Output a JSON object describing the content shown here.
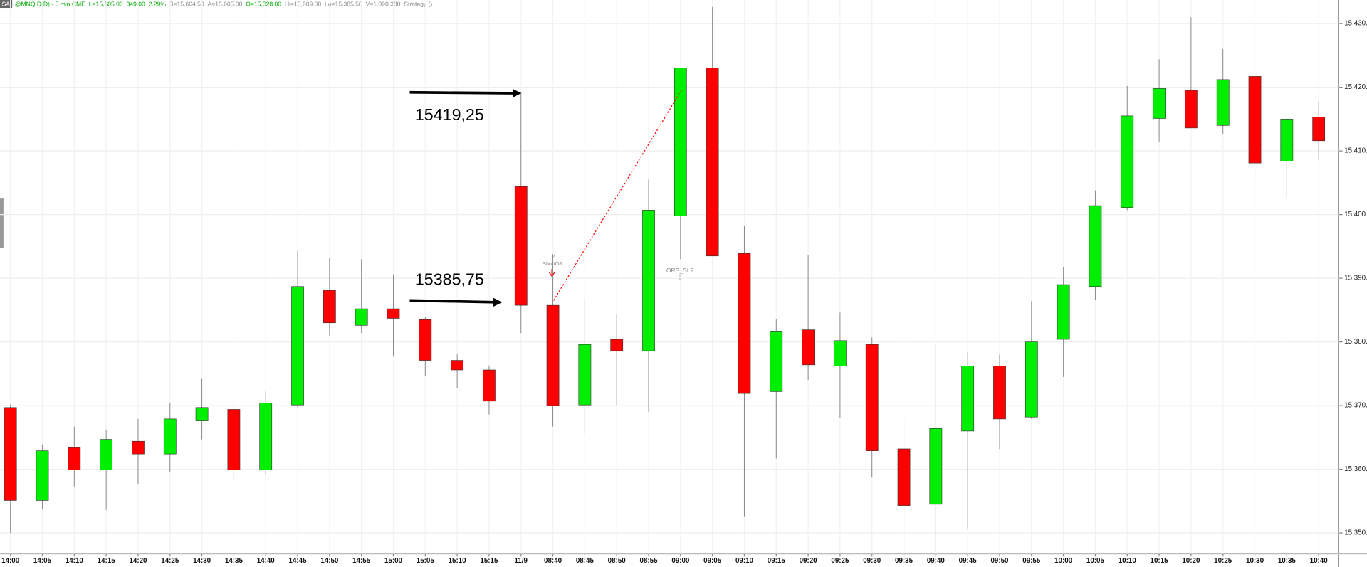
{
  "header": {
    "tag": "SA",
    "items": [
      {
        "text": "@MNQ.D(D) - 5 min CME",
        "color": "#00aa00"
      },
      {
        "text": "L=15,605.00",
        "color": "#00aa00"
      },
      {
        "text": "349.00",
        "color": "#00aa00"
      },
      {
        "text": "2.29%",
        "color": "#00aa00"
      },
      {
        "text": "B=15,604.50",
        "color": "#888888"
      },
      {
        "text": "A=15,605.00",
        "color": "#888888"
      },
      {
        "text": "O=15,328.00",
        "color": "#00aa00"
      },
      {
        "text": "Hi=15,609.00",
        "color": "#888888"
      },
      {
        "text": "Lo=15,385.50",
        "color": "#888888"
      },
      {
        "text": "V=1,090,380",
        "color": "#888888"
      },
      {
        "text": "Strategy ()",
        "color": "#888888"
      }
    ]
  },
  "chart_data": {
    "type": "candlestick",
    "categories": [
      "14:00",
      "14:05",
      "14:10",
      "14:15",
      "14:20",
      "14:25",
      "14:30",
      "14:35",
      "14:40",
      "14:45",
      "14:50",
      "14:55",
      "15:00",
      "15:05",
      "15:10",
      "15:15",
      "11/9",
      "08:40",
      "08:45",
      "08:50",
      "08:55",
      "09:00",
      "09:05",
      "09:10",
      "09:15",
      "09:20",
      "09:25",
      "09:30",
      "09:35",
      "09:40",
      "09:45",
      "09:50",
      "09:55",
      "10:00",
      "10:05",
      "10:10",
      "10:15",
      "10:20",
      "10:25",
      "10:30",
      "10:35",
      "10:40"
    ],
    "open": [
      15369.7,
      15355.1,
      15363.4,
      15359.9,
      15364.4,
      15362.4,
      15367.6,
      15369.4,
      15359.9,
      15370.1,
      15388.1,
      15382.6,
      15385.2,
      15383.5,
      15377.1,
      15375.6,
      15404.4,
      15385.75,
      15370.1,
      15380.4,
      15378.6,
      15399.8,
      15423.0,
      15393.9,
      15372.2,
      15381.9,
      15376.2,
      15379.6,
      15363.2,
      15354.5,
      15366.0,
      15376.2,
      15368.2,
      15380.4,
      15388.7,
      15401.1,
      15415.1,
      15419.5,
      15414.0,
      15421.7,
      15408.4,
      15415.3
    ],
    "high": [
      15370.2,
      15363.9,
      15366.7,
      15366.2,
      15367.9,
      15370.4,
      15374.2,
      15370.1,
      15372.3,
      15394.3,
      15393.2,
      15393.0,
      15390.6,
      15383.9,
      15378.1,
      15376.3,
      15419.25,
      15393.8,
      15386.8,
      15384.4,
      15405.5,
      15423.0,
      15432.6,
      15398.2,
      15383.6,
      15393.6,
      15384.6,
      15380.7,
      15367.8,
      15379.5,
      15378.4,
      15378.0,
      15386.4,
      15391.7,
      15403.8,
      15420.2,
      15424.4,
      15431.0,
      15426.0,
      15421.7,
      15415.0,
      15417.6
    ],
    "low": [
      15350.0,
      15353.7,
      15357.3,
      15353.6,
      15357.6,
      15359.6,
      15364.7,
      15358.4,
      15359.2,
      15369.7,
      15381.0,
      15381.4,
      15377.7,
      15374.6,
      15372.7,
      15368.6,
      15381.4,
      15366.7,
      15365.6,
      15370.1,
      15369.0,
      15393.0,
      15393.5,
      15352.5,
      15361.7,
      15374.0,
      15368.0,
      15358.7,
      15346.4,
      15347.2,
      15350.7,
      15363.2,
      15367.9,
      15374.5,
      15386.6,
      15400.7,
      15411.4,
      15413.6,
      15412.7,
      15405.8,
      15403.0,
      15408.5
    ],
    "close": [
      15355.1,
      15362.9,
      15359.9,
      15364.7,
      15362.4,
      15367.9,
      15369.7,
      15359.9,
      15370.4,
      15388.7,
      15383.0,
      15385.2,
      15383.7,
      15377.1,
      15375.6,
      15370.7,
      15385.75,
      15370.0,
      15379.6,
      15378.6,
      15400.7,
      15423.0,
      15393.5,
      15371.9,
      15381.7,
      15376.4,
      15380.2,
      15362.9,
      15354.3,
      15366.4,
      15376.2,
      15367.9,
      15380.0,
      15389.0,
      15401.4,
      15415.5,
      15419.8,
      15413.6,
      15421.2,
      15408.1,
      15415.0,
      15411.6
    ],
    "up_color": "#00ee00",
    "down_color": "#ff0000",
    "wick_color": "#888888",
    "ylim": [
      15346.7,
      15433.7
    ],
    "yticks": [
      {
        "value": 15350,
        "label": "15,350.00"
      },
      {
        "value": 15360,
        "label": "15,360.00"
      },
      {
        "value": 15370,
        "label": "15,370.00"
      },
      {
        "value": 15380,
        "label": "15,380.00"
      },
      {
        "value": 15390,
        "label": "15,390.00"
      },
      {
        "value": 15400,
        "label": "15,400.00"
      },
      {
        "value": 15410,
        "label": "15,410.00"
      },
      {
        "value": 15420,
        "label": "15,420.00"
      },
      {
        "value": 15430,
        "label": "15,430.00"
      }
    ],
    "grid": true,
    "annotations": [
      "15419,25",
      "15385,75",
      ".2",
      "ShortOR",
      "ORS_SL2",
      "0"
    ]
  }
}
